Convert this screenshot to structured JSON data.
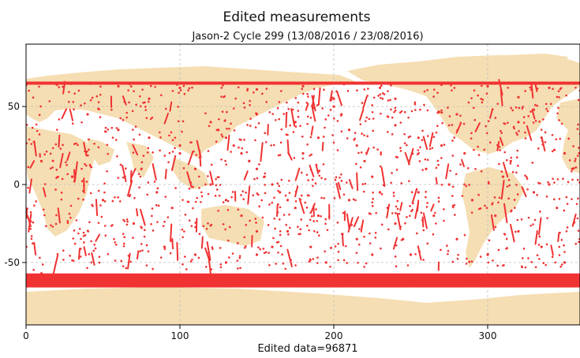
{
  "chart_data": {
    "type": "scatter",
    "title": "Edited measurements",
    "subtitle": "Jason-2  Cycle 299 (13/08/2016 / 23/08/2016)",
    "xlabel": "Edited data=96871",
    "ylabel": "",
    "xlim": [
      0,
      360
    ],
    "ylim": [
      -90,
      90
    ],
    "x_ticks": [
      0,
      100,
      200,
      300
    ],
    "y_ticks": [
      50,
      0,
      -50
    ],
    "grid": true,
    "point_color": "#f03232",
    "land_color": "#f5deb3",
    "series": [
      {
        "name": "",
        "points": [
          [
            50,
            -60
          ],
          [
            90,
            -61
          ],
          [
            130,
            -60
          ],
          [
            170,
            -62
          ],
          [
            210,
            -61
          ],
          [
            250,
            -63
          ],
          [
            290,
            -62
          ],
          [
            330,
            -61
          ],
          [
            10,
            -57
          ],
          [
            110,
            -58
          ],
          [
            200,
            -59
          ],
          [
            300,
            -58
          ],
          [
            20,
            64
          ],
          [
            60,
            63
          ],
          [
            100,
            62
          ],
          [
            150,
            61
          ],
          [
            180,
            63
          ],
          [
            230,
            62
          ],
          [
            270,
            64
          ],
          [
            300,
            63
          ],
          [
            340,
            62
          ],
          [
            80,
            55
          ],
          [
            240,
            55
          ],
          [
            320,
            56
          ],
          [
            330,
            48
          ],
          [
            280,
            45
          ],
          [
            200,
            50
          ],
          [
            150,
            45
          ],
          [
            120,
            40
          ],
          [
            125,
            35
          ],
          [
            130,
            30
          ],
          [
            135,
            25
          ],
          [
            140,
            20
          ],
          [
            145,
            15
          ],
          [
            150,
            10
          ],
          [
            155,
            5
          ],
          [
            160,
            0
          ],
          [
            165,
            -5
          ],
          [
            170,
            -10
          ],
          [
            175,
            -15
          ],
          [
            100,
            20
          ],
          [
            110,
            10
          ],
          [
            120,
            0
          ],
          [
            130,
            -10
          ],
          [
            140,
            -20
          ],
          [
            150,
            -30
          ],
          [
            160,
            -40
          ],
          [
            200,
            55
          ],
          [
            205,
            45
          ],
          [
            210,
            35
          ],
          [
            215,
            25
          ],
          [
            220,
            15
          ],
          [
            225,
            5
          ],
          [
            230,
            -5
          ],
          [
            235,
            -15
          ],
          [
            240,
            -25
          ],
          [
            245,
            -35
          ],
          [
            250,
            -45
          ],
          [
            240,
            38
          ],
          [
            255,
            30
          ],
          [
            270,
            25
          ],
          [
            285,
            20
          ],
          [
            10,
            15
          ],
          [
            30,
            5
          ],
          [
            50,
            -10
          ],
          [
            70,
            -25
          ],
          [
            90,
            -40
          ],
          [
            40,
            45
          ],
          [
            60,
            35
          ],
          [
            80,
            30
          ],
          [
            100,
            25
          ],
          [
            75,
            10
          ],
          [
            85,
            -5
          ],
          [
            95,
            -15
          ],
          [
            110,
            -45
          ],
          [
            130,
            -50
          ],
          [
            150,
            -45
          ],
          [
            170,
            -30
          ],
          [
            190,
            -20
          ],
          [
            210,
            -10
          ],
          [
            260,
            10
          ],
          [
            275,
            0
          ],
          [
            290,
            -10
          ],
          [
            305,
            -20
          ],
          [
            320,
            -30
          ],
          [
            335,
            -40
          ],
          [
            350,
            -50
          ],
          [
            320,
            40
          ],
          [
            335,
            30
          ],
          [
            350,
            20
          ],
          [
            355,
            10
          ],
          [
            340,
            0
          ],
          [
            330,
            -5
          ],
          [
            345,
            -15
          ],
          [
            180,
            20
          ],
          [
            190,
            30
          ],
          [
            175,
            40
          ],
          [
            185,
            -40
          ],
          [
            195,
            -50
          ],
          [
            215,
            -35
          ],
          [
            225,
            -45
          ],
          [
            255,
            -5
          ],
          [
            265,
            -20
          ],
          [
            280,
            -35
          ],
          [
            300,
            -45
          ],
          [
            310,
            5
          ],
          [
            315,
            15
          ]
        ]
      }
    ]
  }
}
